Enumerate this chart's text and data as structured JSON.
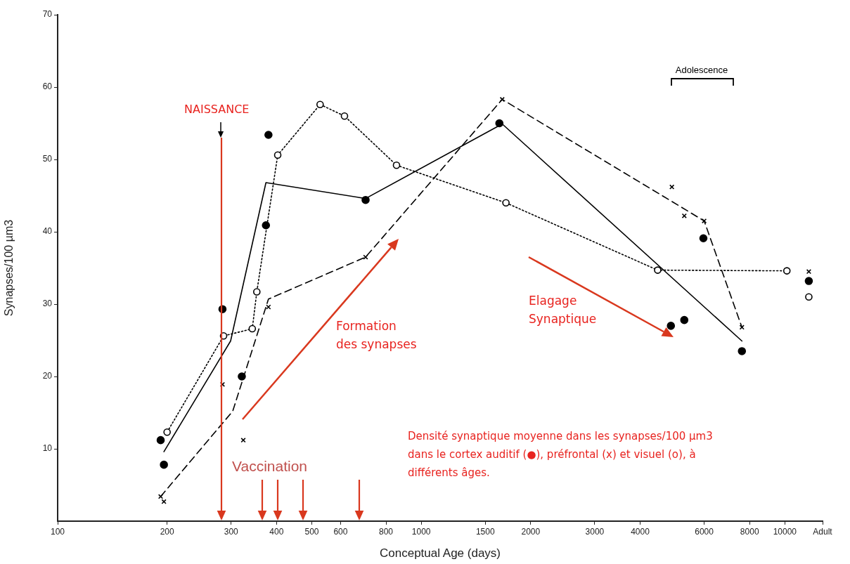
{
  "chart_data": {
    "type": "scatter",
    "xlabel": "Conceptual Age (days)",
    "ylabel": "Synapses/100 µm3",
    "log": "x",
    "grid": false,
    "legend": false,
    "xlim": [
      100,
      12700
    ],
    "xticks": [
      100,
      200,
      300,
      400,
      500,
      600,
      800,
      1000,
      1500,
      2000,
      3000,
      4000,
      6000,
      8000,
      10000,
      {
        "value": 12700,
        "label": "Adult"
      }
    ],
    "ylim": [
      0,
      70
    ],
    "yticks": [
      10,
      20,
      30,
      40,
      50,
      60,
      70
    ],
    "series": [
      {
        "marker": "circle",
        "color": "#000000",
        "x": [
          192,
          196,
          284,
          321,
          374,
          380,
          703,
          1640,
          4860,
          5290,
          5970,
          7620,
          11640
        ],
        "values": [
          11.2,
          7.8,
          29.3,
          20.0,
          40.9,
          53.4,
          44.4,
          55.0,
          27.0,
          27.8,
          39.1,
          23.5,
          33.2
        ]
      },
      {
        "marker": "cross",
        "color": "#000000",
        "x": [
          192,
          196,
          284,
          324,
          380,
          703,
          1670,
          4890,
          5290,
          6000,
          7620,
          11640
        ],
        "values": [
          3.4,
          2.7,
          18.9,
          11.2,
          29.6,
          36.5,
          58.3,
          46.2,
          42.2,
          41.5,
          26.8,
          34.5
        ]
      },
      {
        "marker": "circle-open",
        "color": "#000000",
        "x": [
          200,
          286,
          343,
          353,
          403,
          527,
          615,
          855,
          1710,
          4470,
          10130,
          11640
        ],
        "values": [
          12.3,
          25.6,
          26.6,
          31.7,
          50.6,
          57.6,
          56.0,
          49.2,
          44.0,
          34.7,
          34.6,
          31.0
        ]
      },
      {
        "type": "line",
        "marker": "none",
        "line_style": "solid",
        "color": "#000000",
        "x": [
          196,
          299,
          374,
          703,
          1670,
          7620
        ],
        "values": [
          9.6,
          24.9,
          46.8,
          44.6,
          54.9,
          24.9
        ]
      },
      {
        "type": "line",
        "marker": "none",
        "line_style": "dashed",
        "color": "#000000",
        "x": [
          192,
          303,
          380,
          703,
          1670,
          6000,
          7620
        ],
        "values": [
          3.4,
          15.2,
          30.7,
          36.5,
          58.3,
          41.5,
          26.8
        ]
      },
      {
        "type": "line",
        "marker": "none",
        "line_style": "dotted",
        "color": "#000000",
        "x": [
          200,
          286,
          343,
          353,
          403,
          527,
          615,
          855,
          1710,
          4470,
          10130
        ],
        "values": [
          12.3,
          25.6,
          26.6,
          31.7,
          50.6,
          57.6,
          56.0,
          49.2,
          44.0,
          34.7,
          34.6
        ]
      }
    ],
    "annotations": [
      "NAISSANCE",
      "Vaccination",
      "Formation\ndes synapses",
      "Elagage\nSynaptique",
      "Densité synaptique moyenne dans les synapses/100 µm3\ndans le cortex auditif (●), préfrontal (x) et visuel (o), à\ndifférents âges.",
      "Adolescence"
    ]
  }
}
